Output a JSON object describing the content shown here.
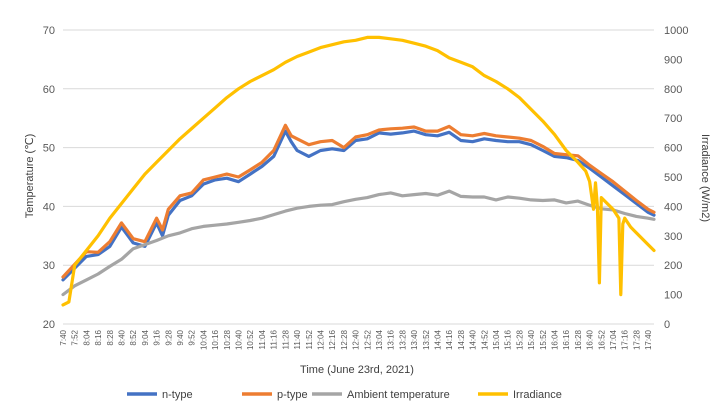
{
  "chart_data": {
    "type": "line",
    "xlabel": "Time (June 23rd, 2021)",
    "ylabel": "Temperature (℃)",
    "y2label": "Irradiance (W/m2)",
    "ylim": [
      20,
      70
    ],
    "y2lim": [
      0,
      1000
    ],
    "y_ticks": [
      "20",
      "30",
      "40",
      "50",
      "60",
      "70"
    ],
    "y2_ticks": [
      "0",
      "100",
      "200",
      "300",
      "400",
      "500",
      "600",
      "700",
      "800",
      "900",
      "1000"
    ],
    "x_tick_labels": [
      "7:40",
      "7:52",
      "8:04",
      "8:16",
      "8:28",
      "8:40",
      "8:52",
      "9:04",
      "9:16",
      "9:28",
      "9:40",
      "9:52",
      "10:04",
      "10:16",
      "10:28",
      "10:40",
      "10:52",
      "11:04",
      "11:16",
      "11:28",
      "11:40",
      "11:52",
      "12:04",
      "12:16",
      "12:28",
      "12:40",
      "12:52",
      "13:04",
      "13:16",
      "13:28",
      "13:40",
      "13:52",
      "14:04",
      "14:16",
      "14:28",
      "14:40",
      "14:52",
      "15:04",
      "15:16",
      "15:28",
      "15:40",
      "15:52",
      "16:04",
      "16:16",
      "16:28",
      "16:40",
      "16:52",
      "17:04",
      "17:16",
      "17:28",
      "17:40"
    ],
    "legend_position": "bottom",
    "grid": true,
    "series": [
      {
        "name": "n-type",
        "axis": "left",
        "color": "#4472C4",
        "points": [
          [
            "7:40",
            27.5
          ],
          [
            "8:04",
            31.5
          ],
          [
            "8:16",
            31.8
          ],
          [
            "8:28",
            33.2
          ],
          [
            "8:40",
            36.5
          ],
          [
            "8:52",
            33.8
          ],
          [
            "9:04",
            33.2
          ],
          [
            "9:16",
            37.2
          ],
          [
            "9:22",
            35.0
          ],
          [
            "9:28",
            38.5
          ],
          [
            "9:40",
            41.0
          ],
          [
            "9:52",
            41.8
          ],
          [
            "10:04",
            43.8
          ],
          [
            "10:16",
            44.5
          ],
          [
            "10:28",
            44.8
          ],
          [
            "10:40",
            44.2
          ],
          [
            "10:52",
            45.5
          ],
          [
            "11:04",
            46.8
          ],
          [
            "11:16",
            48.5
          ],
          [
            "11:28",
            52.8
          ],
          [
            "11:34",
            51.0
          ],
          [
            "11:40",
            49.5
          ],
          [
            "11:52",
            48.5
          ],
          [
            "12:04",
            49.5
          ],
          [
            "12:16",
            49.8
          ],
          [
            "12:28",
            49.5
          ],
          [
            "12:40",
            51.2
          ],
          [
            "12:52",
            51.5
          ],
          [
            "13:04",
            52.5
          ],
          [
            "13:16",
            52.3
          ],
          [
            "13:28",
            52.5
          ],
          [
            "13:40",
            52.8
          ],
          [
            "13:52",
            52.2
          ],
          [
            "14:04",
            52.0
          ],
          [
            "14:16",
            52.6
          ],
          [
            "14:28",
            51.2
          ],
          [
            "14:40",
            51.0
          ],
          [
            "14:52",
            51.5
          ],
          [
            "15:04",
            51.2
          ],
          [
            "15:16",
            51.0
          ],
          [
            "15:28",
            51.0
          ],
          [
            "15:40",
            50.5
          ],
          [
            "15:52",
            49.5
          ],
          [
            "16:04",
            48.5
          ],
          [
            "16:16",
            48.3
          ],
          [
            "16:28",
            47.8
          ],
          [
            "16:40",
            46.5
          ],
          [
            "16:52",
            45.0
          ],
          [
            "17:04",
            43.5
          ],
          [
            "17:16",
            42.0
          ],
          [
            "17:28",
            40.5
          ],
          [
            "17:40",
            39.0
          ],
          [
            "17:46",
            38.5
          ]
        ]
      },
      {
        "name": "p-type",
        "axis": "left",
        "color": "#ED7D31",
        "points": [
          [
            "7:40",
            28.0
          ],
          [
            "8:04",
            32.3
          ],
          [
            "8:16",
            32.2
          ],
          [
            "8:28",
            34.0
          ],
          [
            "8:40",
            37.2
          ],
          [
            "8:52",
            34.5
          ],
          [
            "9:04",
            34.0
          ],
          [
            "9:16",
            38.0
          ],
          [
            "9:22",
            36.0
          ],
          [
            "9:28",
            39.5
          ],
          [
            "9:40",
            41.8
          ],
          [
            "9:52",
            42.3
          ],
          [
            "10:04",
            44.5
          ],
          [
            "10:16",
            45.0
          ],
          [
            "10:28",
            45.5
          ],
          [
            "10:40",
            45.0
          ],
          [
            "10:52",
            46.2
          ],
          [
            "11:04",
            47.5
          ],
          [
            "11:16",
            49.5
          ],
          [
            "11:28",
            53.8
          ],
          [
            "11:34",
            52.0
          ],
          [
            "11:40",
            51.5
          ],
          [
            "11:52",
            50.5
          ],
          [
            "12:04",
            51.0
          ],
          [
            "12:16",
            51.2
          ],
          [
            "12:28",
            50.0
          ],
          [
            "12:40",
            51.8
          ],
          [
            "12:52",
            52.2
          ],
          [
            "13:04",
            53.0
          ],
          [
            "13:16",
            53.2
          ],
          [
            "13:28",
            53.3
          ],
          [
            "13:40",
            53.5
          ],
          [
            "13:52",
            52.8
          ],
          [
            "14:04",
            52.8
          ],
          [
            "14:16",
            53.6
          ],
          [
            "14:28",
            52.2
          ],
          [
            "14:40",
            52.0
          ],
          [
            "14:52",
            52.4
          ],
          [
            "15:04",
            52.0
          ],
          [
            "15:16",
            51.8
          ],
          [
            "15:28",
            51.6
          ],
          [
            "15:40",
            51.2
          ],
          [
            "15:52",
            50.2
          ],
          [
            "16:04",
            49.0
          ],
          [
            "16:16",
            48.8
          ],
          [
            "16:28",
            48.6
          ],
          [
            "16:40",
            47.0
          ],
          [
            "16:52",
            45.6
          ],
          [
            "17:04",
            44.2
          ],
          [
            "17:16",
            42.6
          ],
          [
            "17:28",
            41.0
          ],
          [
            "17:40",
            39.5
          ],
          [
            "17:46",
            39.0
          ]
        ]
      },
      {
        "name": "Ambient temperature",
        "axis": "left",
        "color": "#A5A5A5",
        "points": [
          [
            "7:40",
            25.0
          ],
          [
            "7:52",
            26.5
          ],
          [
            "8:04",
            27.5
          ],
          [
            "8:16",
            28.5
          ],
          [
            "8:28",
            29.8
          ],
          [
            "8:40",
            31.0
          ],
          [
            "8:52",
            32.8
          ],
          [
            "9:04",
            33.5
          ],
          [
            "9:16",
            34.2
          ],
          [
            "9:28",
            35.0
          ],
          [
            "9:40",
            35.5
          ],
          [
            "9:52",
            36.2
          ],
          [
            "10:04",
            36.6
          ],
          [
            "10:16",
            36.8
          ],
          [
            "10:28",
            37.0
          ],
          [
            "10:40",
            37.3
          ],
          [
            "10:52",
            37.6
          ],
          [
            "11:04",
            38.0
          ],
          [
            "11:16",
            38.6
          ],
          [
            "11:28",
            39.2
          ],
          [
            "11:40",
            39.7
          ],
          [
            "11:52",
            40.0
          ],
          [
            "12:04",
            40.2
          ],
          [
            "12:16",
            40.3
          ],
          [
            "12:28",
            40.8
          ],
          [
            "12:40",
            41.2
          ],
          [
            "12:52",
            41.5
          ],
          [
            "13:04",
            42.0
          ],
          [
            "13:16",
            42.3
          ],
          [
            "13:28",
            41.8
          ],
          [
            "13:40",
            42.0
          ],
          [
            "13:52",
            42.2
          ],
          [
            "14:04",
            41.9
          ],
          [
            "14:16",
            42.6
          ],
          [
            "14:28",
            41.7
          ],
          [
            "14:40",
            41.6
          ],
          [
            "14:52",
            41.6
          ],
          [
            "15:04",
            41.1
          ],
          [
            "15:16",
            41.6
          ],
          [
            "15:28",
            41.4
          ],
          [
            "15:40",
            41.1
          ],
          [
            "15:52",
            41.0
          ],
          [
            "16:04",
            41.1
          ],
          [
            "16:16",
            40.6
          ],
          [
            "16:28",
            40.9
          ],
          [
            "16:40",
            40.2
          ],
          [
            "16:52",
            39.6
          ],
          [
            "17:04",
            39.4
          ],
          [
            "17:16",
            38.8
          ],
          [
            "17:28",
            38.3
          ],
          [
            "17:40",
            38.0
          ],
          [
            "17:46",
            37.8
          ]
        ]
      },
      {
        "name": "Irradiance",
        "axis": "right",
        "color": "#FFC000",
        "points": [
          [
            "7:40",
            65
          ],
          [
            "7:46",
            75
          ],
          [
            "7:52",
            200
          ],
          [
            "8:04",
            250
          ],
          [
            "8:16",
            300
          ],
          [
            "8:28",
            360
          ],
          [
            "8:40",
            410
          ],
          [
            "8:52",
            460
          ],
          [
            "9:04",
            510
          ],
          [
            "9:16",
            550
          ],
          [
            "9:28",
            590
          ],
          [
            "9:40",
            630
          ],
          [
            "9:52",
            665
          ],
          [
            "10:04",
            700
          ],
          [
            "10:16",
            735
          ],
          [
            "10:28",
            770
          ],
          [
            "10:40",
            800
          ],
          [
            "10:52",
            825
          ],
          [
            "11:04",
            845
          ],
          [
            "11:16",
            865
          ],
          [
            "11:28",
            890
          ],
          [
            "11:40",
            910
          ],
          [
            "11:52",
            925
          ],
          [
            "12:04",
            940
          ],
          [
            "12:16",
            950
          ],
          [
            "12:28",
            960
          ],
          [
            "12:40",
            965
          ],
          [
            "12:52",
            975
          ],
          [
            "13:04",
            975
          ],
          [
            "13:16",
            970
          ],
          [
            "13:28",
            965
          ],
          [
            "13:40",
            955
          ],
          [
            "13:52",
            945
          ],
          [
            "14:04",
            930
          ],
          [
            "14:16",
            905
          ],
          [
            "14:28",
            890
          ],
          [
            "14:40",
            875
          ],
          [
            "14:52",
            845
          ],
          [
            "15:04",
            825
          ],
          [
            "15:16",
            800
          ],
          [
            "15:28",
            770
          ],
          [
            "15:40",
            730
          ],
          [
            "15:52",
            690
          ],
          [
            "16:04",
            645
          ],
          [
            "16:16",
            590
          ],
          [
            "16:28",
            550
          ],
          [
            "16:36",
            520
          ],
          [
            "16:40",
            485
          ],
          [
            "16:44",
            390
          ],
          [
            "16:46",
            480
          ],
          [
            "16:48",
            400
          ],
          [
            "16:50",
            140
          ],
          [
            "16:52",
            430
          ],
          [
            "17:04",
            390
          ],
          [
            "17:10",
            360
          ],
          [
            "17:12",
            100
          ],
          [
            "17:14",
            340
          ],
          [
            "17:16",
            360
          ],
          [
            "17:22",
            330
          ],
          [
            "17:28",
            310
          ],
          [
            "17:40",
            270
          ],
          [
            "17:46",
            250
          ]
        ]
      }
    ]
  }
}
